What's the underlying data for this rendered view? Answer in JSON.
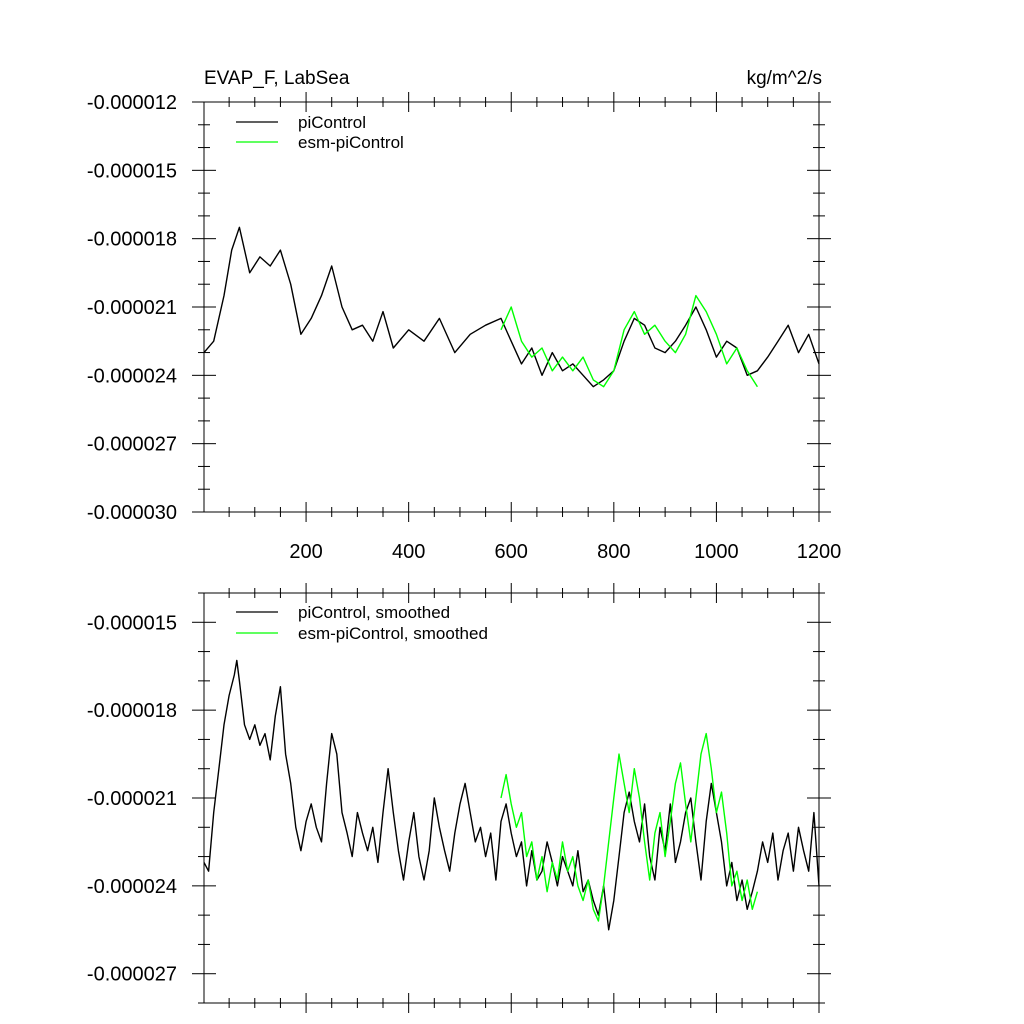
{
  "chart_data": [
    {
      "type": "line",
      "title": "EVAP_F, LabSea",
      "units": "kg/m^2/s",
      "xlim": [
        1,
        1200
      ],
      "ylim": [
        -3e-05,
        -1.2e-05
      ],
      "xticks": [
        200,
        400,
        600,
        800,
        1000,
        1200
      ],
      "xtick_labels": [
        "200",
        "400",
        "600",
        "800",
        "1000",
        "1200"
      ],
      "yticks": [
        -1.2e-05,
        -1.5e-05,
        -1.8e-05,
        -2.1e-05,
        -2.4e-05,
        -2.7e-05,
        -3e-05
      ],
      "ytick_labels": [
        "-0.000012",
        "-0.000015",
        "-0.000018",
        "-0.000021",
        "-0.000024",
        "-0.000027",
        "-0.000030"
      ],
      "legend_position": "top-left",
      "series": [
        {
          "name": "piControl",
          "color": "#000000",
          "x": [
            1,
            20,
            40,
            55,
            70,
            90,
            110,
            130,
            150,
            170,
            190,
            210,
            230,
            250,
            270,
            290,
            310,
            330,
            350,
            370,
            400,
            430,
            460,
            490,
            520,
            550,
            580,
            600,
            620,
            640,
            660,
            680,
            700,
            720,
            740,
            760,
            780,
            800,
            820,
            840,
            860,
            880,
            900,
            920,
            940,
            960,
            980,
            1000,
            1020,
            1040,
            1060,
            1080,
            1100,
            1120,
            1140,
            1160,
            1180,
            1200
          ],
          "y": [
            -2.3e-05,
            -2.25e-05,
            -2.05e-05,
            -1.85e-05,
            -1.75e-05,
            -1.95e-05,
            -1.88e-05,
            -1.92e-05,
            -1.85e-05,
            -2e-05,
            -2.22e-05,
            -2.15e-05,
            -2.05e-05,
            -1.92e-05,
            -2.1e-05,
            -2.2e-05,
            -2.18e-05,
            -2.25e-05,
            -2.12e-05,
            -2.28e-05,
            -2.2e-05,
            -2.25e-05,
            -2.15e-05,
            -2.3e-05,
            -2.22e-05,
            -2.18e-05,
            -2.15e-05,
            -2.25e-05,
            -2.35e-05,
            -2.28e-05,
            -2.4e-05,
            -2.3e-05,
            -2.38e-05,
            -2.35e-05,
            -2.4e-05,
            -2.45e-05,
            -2.42e-05,
            -2.38e-05,
            -2.25e-05,
            -2.15e-05,
            -2.18e-05,
            -2.28e-05,
            -2.3e-05,
            -2.25e-05,
            -2.18e-05,
            -2.1e-05,
            -2.2e-05,
            -2.32e-05,
            -2.25e-05,
            -2.28e-05,
            -2.4e-05,
            -2.38e-05,
            -2.32e-05,
            -2.25e-05,
            -2.18e-05,
            -2.3e-05,
            -2.22e-05,
            -2.35e-05
          ]
        },
        {
          "name": "esm-piControl",
          "color": "#00ff00",
          "x": [
            580,
            600,
            620,
            640,
            660,
            680,
            700,
            720,
            740,
            760,
            780,
            800,
            820,
            840,
            860,
            880,
            900,
            920,
            940,
            960,
            980,
            1000,
            1020,
            1040,
            1060,
            1080
          ],
          "y": [
            -2.2e-05,
            -2.1e-05,
            -2.25e-05,
            -2.32e-05,
            -2.28e-05,
            -2.38e-05,
            -2.32e-05,
            -2.38e-05,
            -2.32e-05,
            -2.42e-05,
            -2.45e-05,
            -2.38e-05,
            -2.2e-05,
            -2.12e-05,
            -2.22e-05,
            -2.18e-05,
            -2.25e-05,
            -2.3e-05,
            -2.22e-05,
            -2.05e-05,
            -2.12e-05,
            -2.22e-05,
            -2.35e-05,
            -2.28e-05,
            -2.38e-05,
            -2.45e-05
          ]
        }
      ]
    },
    {
      "type": "line",
      "xlim": [
        1,
        1200
      ],
      "ylim": [
        -2.8e-05,
        -1.4e-05
      ],
      "xticks": [
        200,
        400,
        600,
        800,
        1000,
        1200
      ],
      "yticks": [
        -1.5e-05,
        -1.8e-05,
        -2.1e-05,
        -2.4e-05,
        -2.7e-05
      ],
      "ytick_labels": [
        "-0.000015",
        "-0.000018",
        "-0.000021",
        "-0.000024",
        "-0.000027"
      ],
      "legend_position": "top-left",
      "series": [
        {
          "name": "piControl, smoothed",
          "color": "#000000",
          "x": [
            1,
            10,
            20,
            30,
            40,
            50,
            60,
            65,
            70,
            80,
            90,
            100,
            110,
            120,
            130,
            140,
            150,
            160,
            170,
            180,
            190,
            200,
            210,
            220,
            230,
            240,
            250,
            260,
            270,
            280,
            290,
            300,
            310,
            320,
            330,
            340,
            350,
            360,
            370,
            380,
            390,
            400,
            410,
            420,
            430,
            440,
            450,
            460,
            470,
            480,
            490,
            500,
            510,
            520,
            530,
            540,
            550,
            560,
            570,
            580,
            590,
            600,
            610,
            620,
            630,
            640,
            650,
            660,
            670,
            680,
            690,
            700,
            710,
            720,
            730,
            740,
            750,
            760,
            770,
            780,
            790,
            800,
            810,
            820,
            830,
            840,
            850,
            860,
            870,
            880,
            890,
            900,
            910,
            920,
            930,
            940,
            950,
            960,
            970,
            980,
            990,
            1000,
            1010,
            1020,
            1030,
            1040,
            1050,
            1060,
            1070,
            1080,
            1090,
            1100,
            1110,
            1120,
            1130,
            1140,
            1150,
            1160,
            1170,
            1180,
            1190,
            1200
          ],
          "y": [
            -2.32e-05,
            -2.35e-05,
            -2.15e-05,
            -2e-05,
            -1.85e-05,
            -1.75e-05,
            -1.68e-05,
            -1.63e-05,
            -1.7e-05,
            -1.85e-05,
            -1.9e-05,
            -1.85e-05,
            -1.92e-05,
            -1.88e-05,
            -1.97e-05,
            -1.82e-05,
            -1.72e-05,
            -1.95e-05,
            -2.05e-05,
            -2.2e-05,
            -2.28e-05,
            -2.18e-05,
            -2.12e-05,
            -2.2e-05,
            -2.25e-05,
            -2.05e-05,
            -1.88e-05,
            -1.95e-05,
            -2.15e-05,
            -2.22e-05,
            -2.3e-05,
            -2.15e-05,
            -2.22e-05,
            -2.28e-05,
            -2.2e-05,
            -2.32e-05,
            -2.15e-05,
            -2e-05,
            -2.15e-05,
            -2.28e-05,
            -2.38e-05,
            -2.25e-05,
            -2.15e-05,
            -2.3e-05,
            -2.38e-05,
            -2.28e-05,
            -2.1e-05,
            -2.2e-05,
            -2.28e-05,
            -2.35e-05,
            -2.22e-05,
            -2.12e-05,
            -2.05e-05,
            -2.15e-05,
            -2.25e-05,
            -2.2e-05,
            -2.3e-05,
            -2.22e-05,
            -2.38e-05,
            -2.18e-05,
            -2.12e-05,
            -2.22e-05,
            -2.3e-05,
            -2.25e-05,
            -2.4e-05,
            -2.28e-05,
            -2.38e-05,
            -2.35e-05,
            -2.25e-05,
            -2.32e-05,
            -2.4e-05,
            -2.3e-05,
            -2.35e-05,
            -2.4e-05,
            -2.28e-05,
            -2.42e-05,
            -2.38e-05,
            -2.45e-05,
            -2.5e-05,
            -2.4e-05,
            -2.55e-05,
            -2.45e-05,
            -2.3e-05,
            -2.15e-05,
            -2.08e-05,
            -2.18e-05,
            -2.25e-05,
            -2.12e-05,
            -2.3e-05,
            -2.38e-05,
            -2.2e-05,
            -2.28e-05,
            -2.12e-05,
            -2.32e-05,
            -2.25e-05,
            -2.15e-05,
            -2.1e-05,
            -2.25e-05,
            -2.38e-05,
            -2.18e-05,
            -2.05e-05,
            -2.15e-05,
            -2.25e-05,
            -2.4e-05,
            -2.32e-05,
            -2.45e-05,
            -2.38e-05,
            -2.48e-05,
            -2.42e-05,
            -2.35e-05,
            -2.25e-05,
            -2.32e-05,
            -2.22e-05,
            -2.38e-05,
            -2.28e-05,
            -2.22e-05,
            -2.35e-05,
            -2.2e-05,
            -2.28e-05,
            -2.35e-05,
            -2.15e-05,
            -2.4e-05
          ]
        },
        {
          "name": "esm-piControl, smoothed",
          "color": "#00ff00",
          "x": [
            580,
            590,
            600,
            610,
            620,
            630,
            640,
            650,
            660,
            670,
            680,
            690,
            700,
            710,
            720,
            730,
            740,
            750,
            760,
            770,
            780,
            790,
            800,
            810,
            820,
            830,
            840,
            850,
            860,
            870,
            880,
            890,
            900,
            910,
            920,
            930,
            940,
            950,
            960,
            970,
            980,
            990,
            1000,
            1010,
            1020,
            1030,
            1040,
            1050,
            1060,
            1070,
            1080
          ],
          "y": [
            -2.1e-05,
            -2.02e-05,
            -2.12e-05,
            -2.2e-05,
            -2.15e-05,
            -2.3e-05,
            -2.25e-05,
            -2.38e-05,
            -2.3e-05,
            -2.42e-05,
            -2.32e-05,
            -2.38e-05,
            -2.25e-05,
            -2.35e-05,
            -2.3e-05,
            -2.4e-05,
            -2.45e-05,
            -2.38e-05,
            -2.48e-05,
            -2.52e-05,
            -2.4e-05,
            -2.25e-05,
            -2.1e-05,
            -1.95e-05,
            -2.05e-05,
            -2.15e-05,
            -2e-05,
            -2.1e-05,
            -2.25e-05,
            -2.38e-05,
            -2.22e-05,
            -2.15e-05,
            -2.3e-05,
            -2.18e-05,
            -2.05e-05,
            -1.98e-05,
            -2.12e-05,
            -2.25e-05,
            -2.1e-05,
            -1.95e-05,
            -1.88e-05,
            -2e-05,
            -2.15e-05,
            -2.08e-05,
            -2.22e-05,
            -2.4e-05,
            -2.35e-05,
            -2.45e-05,
            -2.38e-05,
            -2.48e-05,
            -2.42e-05
          ]
        }
      ]
    }
  ]
}
